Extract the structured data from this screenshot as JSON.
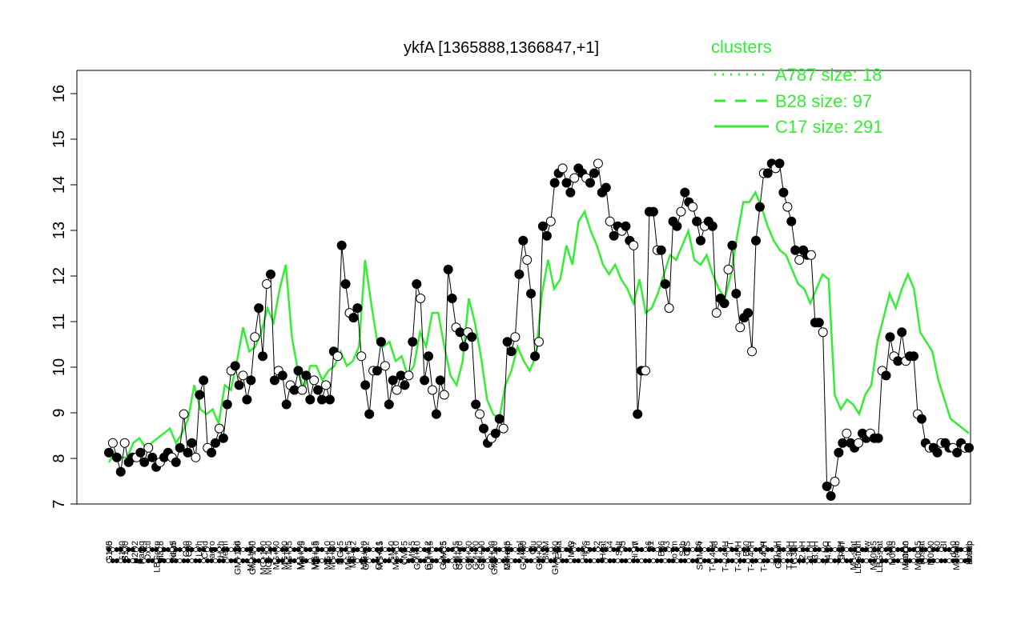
{
  "chart_data": {
    "type": "line",
    "title": "ykfA [1365888,1366847,+1]",
    "xlabel": "",
    "ylabel": "",
    "ylim": [
      7,
      16
    ],
    "yticks": [
      7,
      8,
      9,
      10,
      11,
      12,
      13,
      14,
      15,
      16
    ],
    "grid": false,
    "legend": {
      "title": "clusters",
      "position": "top-right",
      "entries": [
        {
          "label": "A787 size: 18",
          "style": "dotted"
        },
        {
          "label": "B28 size: 97",
          "style": "dashed"
        },
        {
          "label": "C17 size: 291",
          "style": "solid"
        }
      ]
    },
    "colors": {
      "cluster_line": "#33ee33",
      "points": "#000000",
      "axis": "#000000"
    },
    "x_tick_labels_top": [
      "G135",
      "G180",
      "H2O2",
      "Oxctl",
      "dia15",
      "dia5",
      "C30",
      "LPh",
      "aero",
      "ferm",
      "GM+150",
      "M9-tran",
      "MG+120",
      "MG+60",
      "MG+45",
      "MG+25",
      "MG+15",
      "MG+10",
      "MG+5",
      "M9-0.2",
      "GM-0.2",
      "GM-0.1",
      "GM-0",
      "GM+5",
      "GM+10",
      "GM+15",
      "GM+25",
      "GM+45",
      "GM+60",
      "GM+90",
      "GM+120",
      "M9-exp",
      "Mal",
      "Glu",
      "BMM",
      "Etha",
      "Gly",
      "HiOs",
      "S2",
      "S4",
      "S5",
      "S7",
      "S6",
      "B36",
      "LoTm",
      "G/S",
      "SMMPr",
      "T-5.40H",
      "T-4.40H",
      "T-3.40H",
      "T-2.40H",
      "T-1.40H",
      "T0.0H",
      "T1.30H",
      "T2.0H",
      "T3.0H",
      "T4.0H",
      "T5.0H",
      "M9-stat",
      "Sw",
      "LBGstat",
      "M0t45",
      "Lbtran",
      "M40t45",
      "M0t90",
      "BI",
      "M0t45b",
      "Lbexp"
    ],
    "x_tick_labels_bottom": [
      "G150",
      "G180",
      "Paraq",
      "LBGexp",
      "Diami",
      "C90",
      "Cold",
      "HPh",
      "nit",
      "GM+150",
      "MG+150",
      "MG+90",
      "MG+60",
      "MG+45",
      "MG+30",
      "MG+25",
      "MG+20",
      "MG+15",
      "MG+10",
      "M9-5",
      "GM-0.2",
      "GM+5",
      "GM+10",
      "GM+20",
      "GM+30",
      "GM+45",
      "GM+60",
      "GM+90",
      "GM+150",
      "M/G",
      "Fru",
      "Heat",
      "Salt",
      "HiTm",
      "S1",
      "S3",
      "S3b",
      "S6",
      "S8",
      "BT",
      "B60",
      "Pyr",
      "Glucon",
      "T0.30H",
      "T1.0H",
      "BC",
      "LPhT",
      "LBGtran",
      "M40t45",
      "Mt0",
      "M40t90",
      "Lbstat",
      "S0",
      "dia0",
      "Mt0b"
    ],
    "point_values": [
      8.1,
      8.3,
      8.0,
      7.7,
      8.3,
      7.9,
      8.0,
      8.0,
      8.1,
      7.9,
      8.2,
      8.0,
      7.8,
      7.9,
      8.0,
      8.1,
      8.0,
      7.9,
      8.2,
      8.9,
      8.1,
      8.3,
      8.0,
      9.3,
      9.6,
      8.2,
      8.1,
      8.3,
      8.6,
      8.4,
      9.1,
      9.8,
      9.9,
      9.5,
      9.7,
      9.2,
      9.6,
      10.5,
      11.1,
      10.1,
      11.6,
      11.8,
      9.6,
      9.8,
      9.7,
      9.1,
      9.5,
      9.4,
      9.8,
      9.4,
      9.7,
      9.2,
      9.6,
      9.4,
      9.2,
      9.5,
      9.2,
      10.2,
      10.1,
      12.4,
      11.6,
      11.0,
      10.9,
      11.1,
      10.1,
      9.5,
      8.9,
      9.8,
      9.8,
      10.4,
      9.9,
      9.1,
      9.6,
      9.4,
      9.7,
      9.5,
      9.7,
      10.4,
      11.6,
      11.3,
      9.6,
      10.1,
      9.4,
      8.9,
      9.6,
      9.3,
      11.9,
      11.3,
      10.7,
      10.6,
      10.3,
      10.6,
      10.5,
      9.1,
      8.9,
      8.6,
      8.3,
      8.4,
      8.5,
      8.8,
      8.6,
      10.4,
      10.2,
      10.5,
      11.8,
      12.5,
      12.1,
      11.4,
      10.1,
      10.4,
      12.8,
      12.6,
      12.9,
      13.7,
      13.9,
      14.0,
      13.7,
      13.5,
      13.8,
      14.0,
      13.9,
      13.8,
      13.7,
      13.9,
      14.1,
      13.5,
      13.6,
      12.9,
      12.6,
      12.8,
      12.7,
      12.8,
      12.5,
      12.4,
      8.9,
      9.8,
      9.8,
      13.1,
      13.1,
      12.3,
      12.3,
      11.6,
      11.1,
      12.9,
      12.8,
      13.1,
      13.5,
      13.3,
      13.2,
      12.9,
      12.5,
      12.8,
      12.9,
      12.8,
      11.0,
      11.3,
      11.2,
      11.9,
      12.4,
      11.4,
      10.7,
      10.9,
      11.0,
      10.2,
      12.5,
      13.2,
      13.9,
      13.9,
      14.1,
      14.0,
      14.1,
      13.5,
      13.2,
      12.9,
      12.3,
      12.1,
      12.3,
      12.2,
      12.2,
      10.8,
      10.8,
      10.6,
      7.4,
      7.2,
      7.5,
      8.1,
      8.3,
      8.5,
      8.3,
      8.2,
      8.3,
      8.5,
      8.4,
      8.5,
      8.4,
      8.4,
      9.8,
      9.7,
      10.5,
      10.1,
      10.0,
      10.6,
      10.0,
      10.1,
      10.1,
      8.9,
      8.8,
      8.3,
      8.2,
      8.2,
      8.1,
      8.3,
      8.3,
      8.2,
      8.2,
      8.1,
      8.3,
      8.2,
      8.2
    ],
    "c17_line": [
      7.9,
      8.1,
      8.0,
      8.0,
      8.3,
      8.4,
      8.2,
      8.3,
      8.4,
      8.5,
      8.6,
      8.3,
      8.5,
      8.8,
      9.5,
      9.0,
      8.9,
      9.0,
      8.7,
      9.5,
      9.4,
      10.0,
      10.7,
      10.2,
      10.3,
      10.6,
      11.1,
      10.8,
      11.5,
      12.0,
      10.5,
      9.8,
      9.4,
      9.9,
      9.9,
      9.6,
      9.8,
      9.9,
      10.2,
      9.9,
      10.0,
      10.3,
      12.1,
      11.2,
      10.4,
      10.3,
      10.4,
      10.0,
      10.1,
      9.7,
      9.9,
      10.6,
      10.3,
      11.0,
      11.0,
      10.3,
      9.7,
      9.5,
      10.0,
      11.3,
      10.8,
      10.1,
      9.2,
      8.9,
      8.8,
      9.5,
      9.8,
      10.3,
      10.0,
      9.8,
      10.1,
      11.4,
      12.1,
      11.5,
      11.7,
      12.4,
      12.0,
      12.9,
      13.1,
      12.7,
      12.4,
      12.0,
      11.8,
      12.0,
      11.7,
      11.5,
      11.2,
      11.7,
      11.0,
      11.1,
      11.4,
      11.8,
      12.2,
      12.1,
      12.4,
      12.7,
      12.1,
      12.0,
      12.2,
      11.8,
      11.5,
      11.3,
      11.8,
      12.6,
      13.3,
      13.3,
      13.5,
      13.2,
      12.8,
      12.5,
      12.3,
      12.2,
      11.9,
      11.6,
      11.5,
      11.2,
      11.5,
      11.8,
      11.7,
      9.3,
      9.0,
      9.2,
      9.1,
      8.9,
      9.3,
      9.5,
      10.4,
      10.9,
      11.4,
      11.1,
      11.5,
      11.8,
      11.5,
      10.6,
      10.4,
      10.2,
      9.6,
      9.2,
      8.8,
      8.7,
      8.6,
      8.5
    ]
  }
}
